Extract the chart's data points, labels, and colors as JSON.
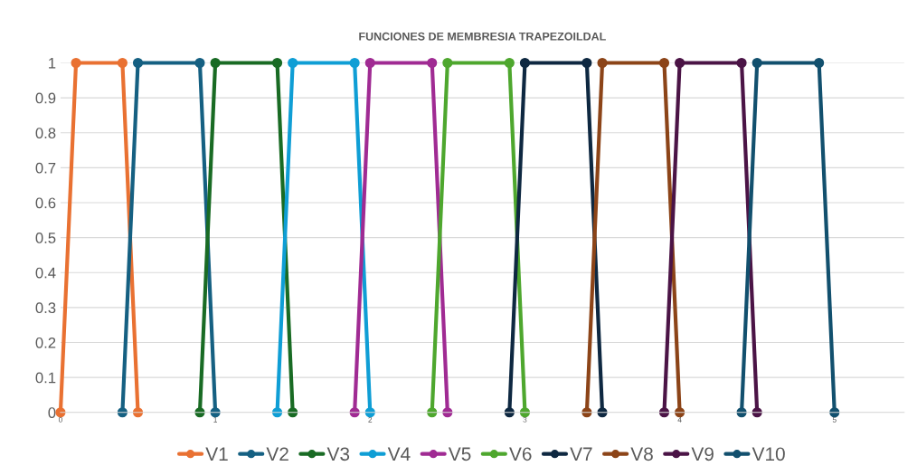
{
  "chart_data": {
    "type": "line",
    "title": "FUNCIONES DE MEMBRESIA TRAPEZOILDAL",
    "series": [
      {
        "name": "V1",
        "color": "#e97132",
        "x": [
          0,
          0.1,
          0.4,
          0.5
        ],
        "values": [
          0,
          1,
          1,
          0
        ]
      },
      {
        "name": "V2",
        "color": "#156082",
        "x": [
          0.4,
          0.5,
          0.9,
          1.0
        ],
        "values": [
          0,
          1,
          1,
          0
        ]
      },
      {
        "name": "V3",
        "color": "#196b24",
        "x": [
          0.9,
          1.0,
          1.4,
          1.5
        ],
        "values": [
          0,
          1,
          1,
          0
        ]
      },
      {
        "name": "V4",
        "color": "#0f9ed5",
        "x": [
          1.4,
          1.5,
          1.9,
          2.0
        ],
        "values": [
          0,
          1,
          1,
          0
        ]
      },
      {
        "name": "V5",
        "color": "#a02b93",
        "x": [
          1.9,
          2.0,
          2.4,
          2.5
        ],
        "values": [
          0,
          1,
          1,
          0
        ]
      },
      {
        "name": "V6",
        "color": "#4ea72e",
        "x": [
          2.4,
          2.5,
          2.9,
          3.0
        ],
        "values": [
          0,
          1,
          1,
          0
        ]
      },
      {
        "name": "V7",
        "color": "#0e2841",
        "x": [
          2.9,
          3.0,
          3.4,
          3.5
        ],
        "values": [
          0,
          1,
          1,
          0
        ]
      },
      {
        "name": "V8",
        "color": "#8c4418",
        "x": [
          3.4,
          3.5,
          3.9,
          4.0
        ],
        "values": [
          0,
          1,
          1,
          0
        ]
      },
      {
        "name": "V9",
        "color": "#4b1446",
        "x": [
          3.9,
          4.0,
          4.4,
          4.5
        ],
        "values": [
          0,
          1,
          1,
          0
        ]
      },
      {
        "name": "V10",
        "color": "#12506e",
        "x": [
          4.4,
          4.5,
          4.9,
          5.0
        ],
        "values": [
          0,
          1,
          1,
          0
        ]
      }
    ],
    "xlim": [
      0,
      5.45
    ],
    "xticks": [
      0,
      1,
      2,
      3,
      4,
      5
    ],
    "ylim": [
      0,
      1
    ],
    "yticks": [
      0,
      0.1,
      0.2,
      0.3,
      0.4,
      0.5,
      0.6,
      0.7,
      0.8,
      0.9,
      1
    ],
    "grid": "y",
    "legend": "bottom",
    "marker": "circle",
    "line_style": "solid"
  }
}
